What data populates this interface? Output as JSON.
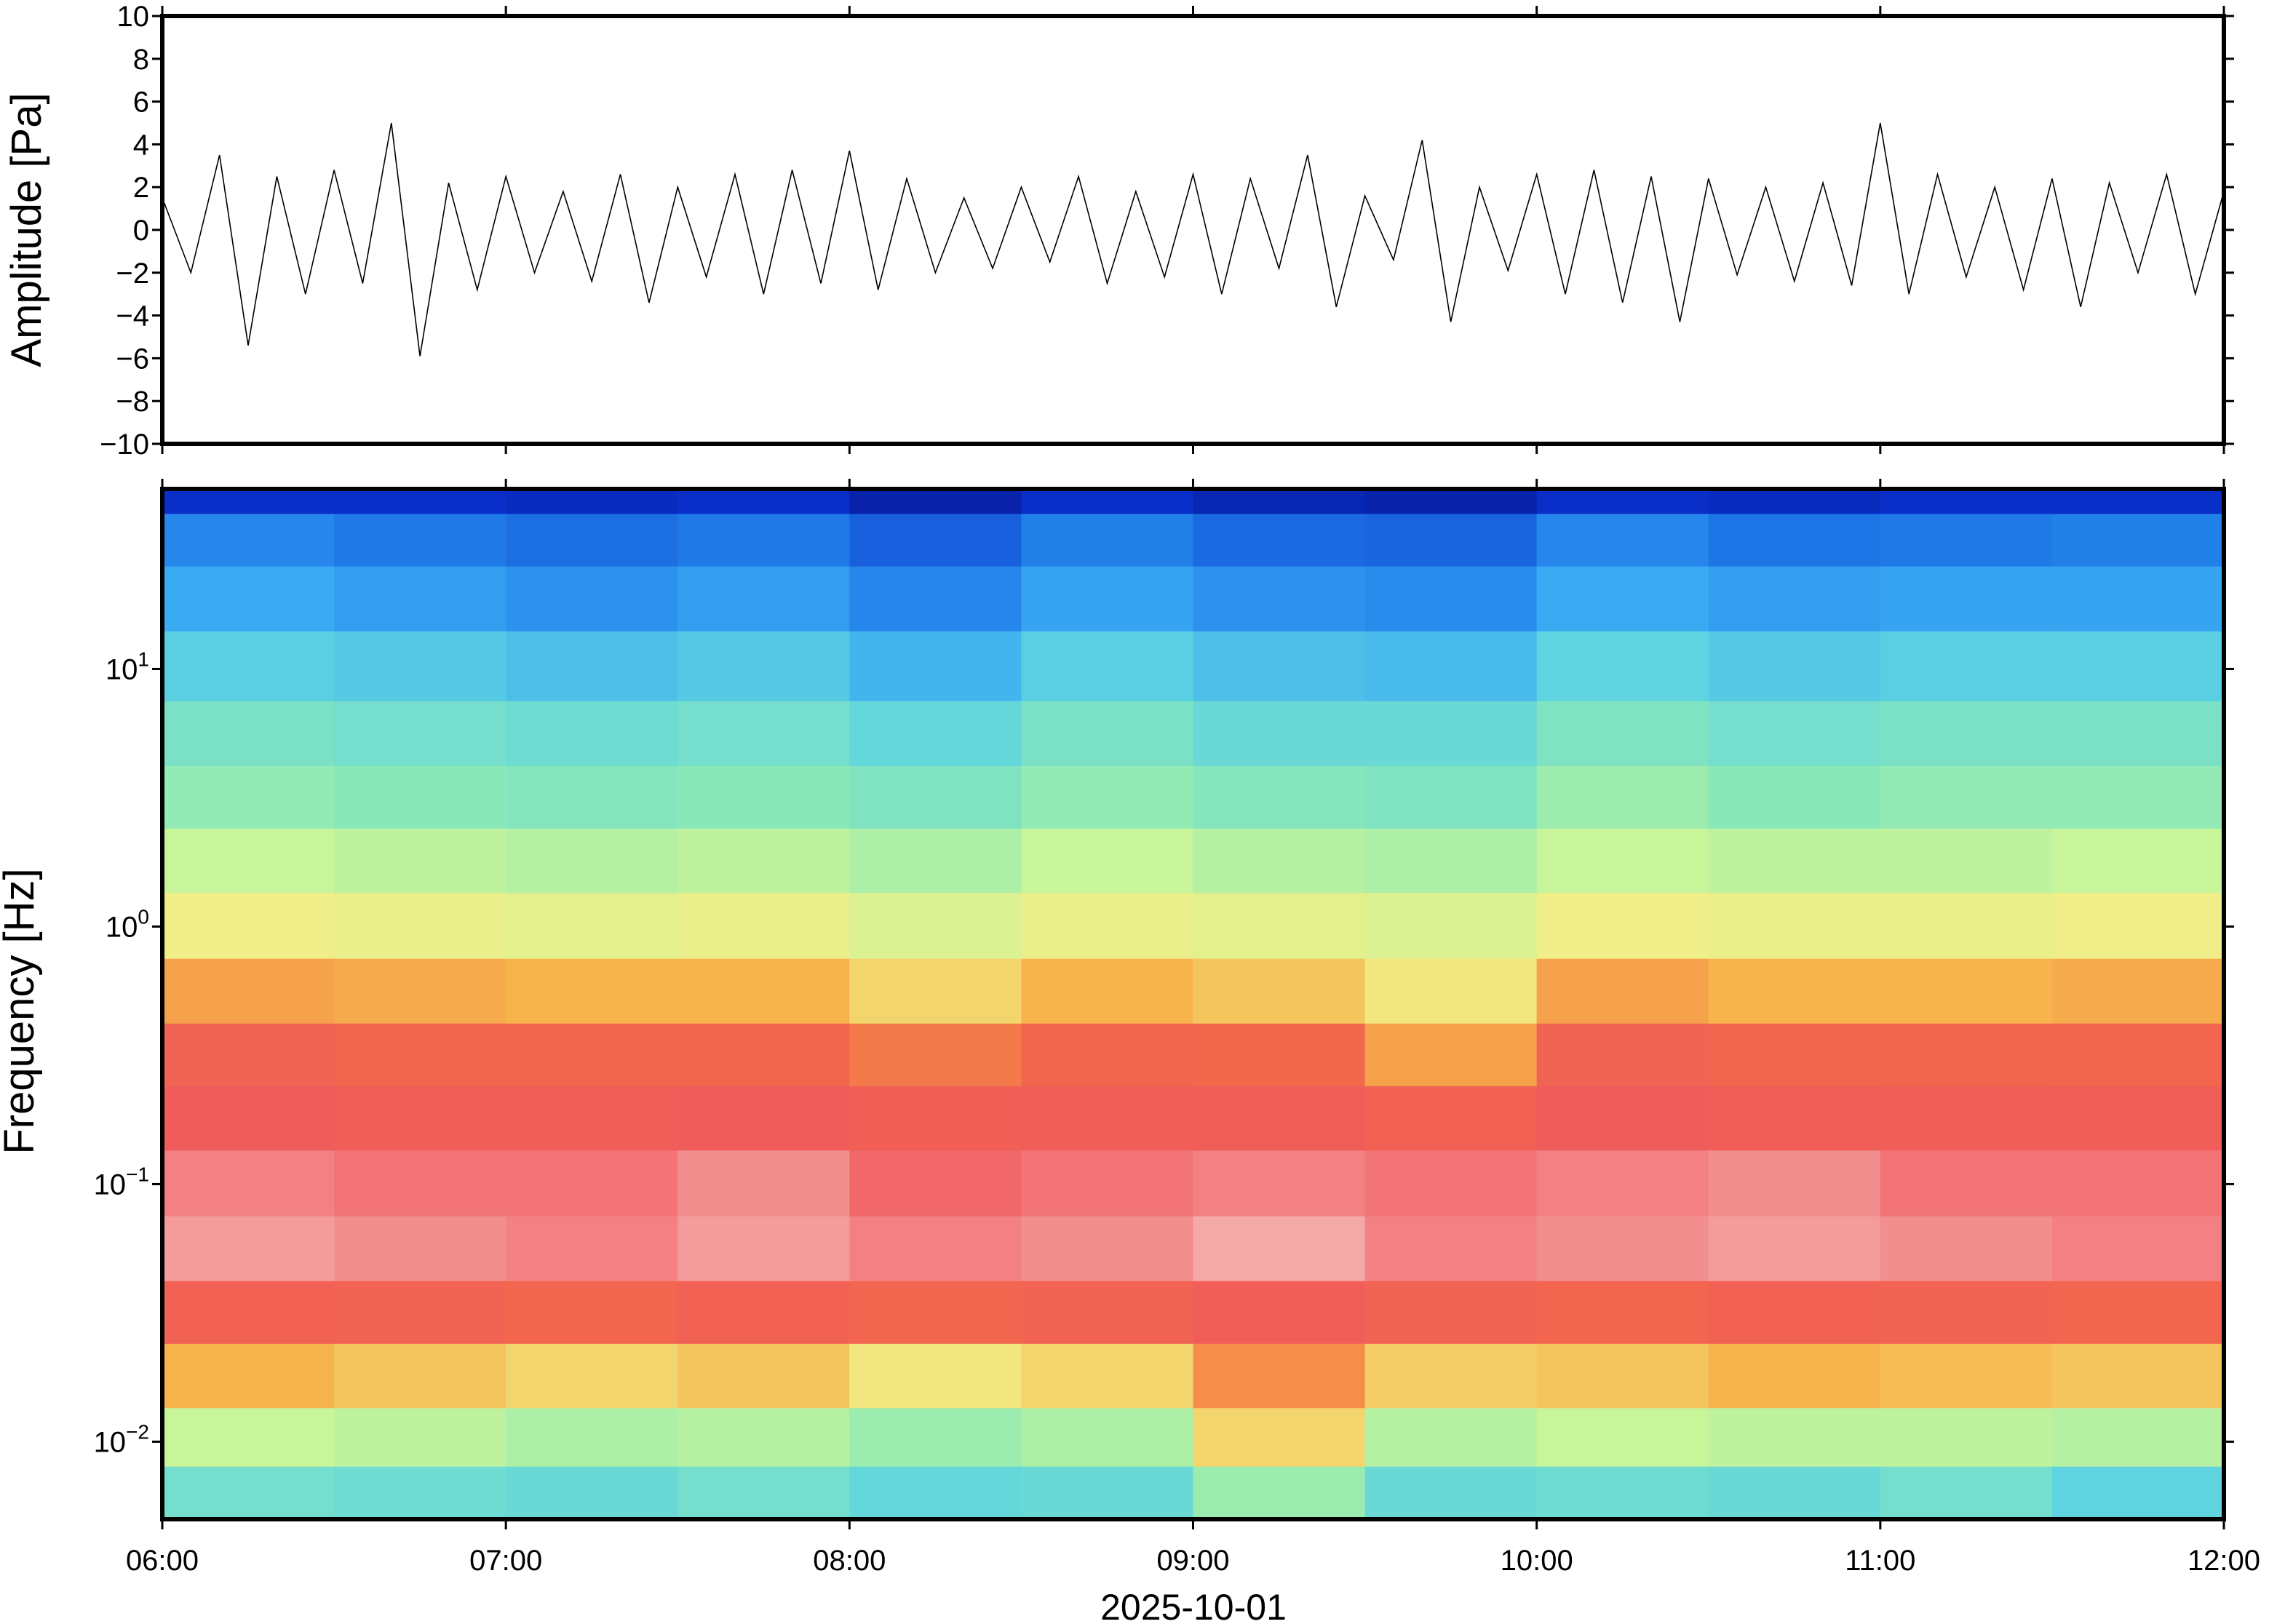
{
  "chart_data": [
    {
      "type": "line",
      "ylabel": "Amplitude [Pa]",
      "color": "#000000",
      "xlim": [
        6,
        12
      ],
      "ylim": [
        -10,
        10
      ],
      "yticks": [
        {
          "value": -10,
          "label": "−10"
        },
        {
          "value": -8,
          "label": "−8"
        },
        {
          "value": -6,
          "label": "−6"
        },
        {
          "value": -4,
          "label": "−4"
        },
        {
          "value": -2,
          "label": "−2"
        },
        0,
        2,
        4,
        6,
        8,
        10
      ],
      "x": [
        6.0,
        6.0833,
        6.1667,
        6.25,
        6.3333,
        6.4167,
        6.5,
        6.5833,
        6.6667,
        6.75,
        6.8333,
        6.9167,
        7.0,
        7.0833,
        7.1667,
        7.25,
        7.3333,
        7.4167,
        7.5,
        7.5833,
        7.6667,
        7.75,
        7.8333,
        7.9167,
        8.0,
        8.0833,
        8.1667,
        8.25,
        8.3333,
        8.4167,
        8.5,
        8.5833,
        8.6667,
        8.75,
        8.8333,
        8.9167,
        9.0,
        9.0833,
        9.1667,
        9.25,
        9.3333,
        9.4167,
        9.5,
        9.5833,
        9.6667,
        9.75,
        9.8333,
        9.9167,
        10.0,
        10.0833,
        10.1667,
        10.25,
        10.3333,
        10.4167,
        10.5,
        10.5833,
        10.6667,
        10.75,
        10.8333,
        10.9167,
        11.0,
        11.0833,
        11.1667,
        11.25,
        11.3333,
        11.4167,
        11.5,
        11.5833,
        11.6667,
        11.75,
        11.8333,
        11.9167,
        12.0
      ],
      "values": [
        1.5,
        -2.0,
        3.5,
        -5.4,
        2.5,
        -3.0,
        2.8,
        -2.5,
        5.0,
        -5.9,
        2.2,
        -2.8,
        2.5,
        -2.0,
        1.8,
        -2.4,
        2.6,
        -3.4,
        2.0,
        -2.2,
        2.6,
        -3.0,
        2.8,
        -2.5,
        3.7,
        -2.8,
        2.4,
        -2.0,
        1.5,
        -1.8,
        2.0,
        -1.5,
        2.5,
        -2.5,
        1.8,
        -2.2,
        2.6,
        -3.0,
        2.4,
        -1.8,
        3.5,
        -3.6,
        1.6,
        -1.4,
        4.2,
        -4.3,
        2.0,
        -1.9,
        2.6,
        -3.0,
        2.8,
        -3.4,
        2.5,
        -4.3,
        2.4,
        -2.1,
        2.0,
        -2.4,
        2.2,
        -2.6,
        5.0,
        -3.0,
        2.6,
        -2.2,
        2.0,
        -2.8,
        2.4,
        -3.6,
        2.2,
        -2.0,
        2.6,
        -3.0,
        1.8
      ]
    },
    {
      "type": "heatmap",
      "ylabel": "Frequency [Hz]",
      "xlabel": "2025-10-01",
      "yscale": "log",
      "xlim": [
        6,
        12
      ],
      "ylim": [
        0.005,
        50
      ],
      "xticks": [
        {
          "value": 6,
          "label": "06:00"
        },
        {
          "value": 7,
          "label": "07:00"
        },
        {
          "value": 8,
          "label": "08:00"
        },
        {
          "value": 9,
          "label": "09:00"
        },
        {
          "value": 10,
          "label": "10:00"
        },
        {
          "value": 11,
          "label": "11:00"
        },
        {
          "value": 12,
          "label": "12:00"
        }
      ],
      "yticks": [
        {
          "value": 0.01,
          "label": "10",
          "exponent": "−2"
        },
        {
          "value": 0.1,
          "label": "10",
          "exponent": "−1"
        },
        {
          "value": 1,
          "label": "10",
          "exponent": "0"
        },
        {
          "value": 10,
          "label": "10",
          "exponent": "1"
        }
      ],
      "x_edges": [
        6,
        6.5,
        7,
        7.5,
        8,
        8.5,
        9,
        9.5,
        10,
        10.5,
        11,
        11.5,
        12
      ],
      "y_edges": [
        50,
        40,
        25,
        14,
        7.5,
        4.2,
        2.4,
        1.35,
        0.75,
        0.42,
        0.24,
        0.135,
        0.075,
        0.042,
        0.024,
        0.0135,
        0.008,
        0.005
      ],
      "colorscale": [
        [
          0,
          "#00004a"
        ],
        [
          12,
          "#0a2fc8"
        ],
        [
          26,
          "#1f7ae8"
        ],
        [
          34,
          "#3aaaf2"
        ],
        [
          42,
          "#5fd4e0"
        ],
        [
          50,
          "#8ae8b8"
        ],
        [
          57,
          "#c8f49a"
        ],
        [
          63,
          "#f0ee88"
        ],
        [
          70,
          "#f7b44c"
        ],
        [
          78,
          "#f2684a"
        ],
        [
          86,
          "#f05a5e"
        ],
        [
          92,
          "#f5a8a8"
        ]
      ],
      "z": [
        [
          12,
          12,
          11,
          12,
          9,
          12,
          10,
          9,
          12,
          11,
          12,
          12
        ],
        [
          28,
          26,
          24,
          26,
          21,
          27,
          23,
          22,
          28,
          25,
          26,
          27
        ],
        [
          34,
          32,
          30,
          32,
          28,
          33,
          30,
          29,
          34,
          32,
          33,
          33
        ],
        [
          41,
          40,
          38,
          40,
          36,
          41,
          38,
          37,
          42,
          40,
          41,
          41
        ],
        [
          47,
          46,
          45,
          46,
          43,
          47,
          44,
          44,
          48,
          46,
          47,
          47
        ],
        [
          51,
          50,
          49,
          50,
          48,
          51,
          49,
          48,
          52,
          50,
          51,
          51
        ],
        [
          57,
          56,
          55,
          56,
          54,
          57,
          55,
          54,
          57,
          56,
          56,
          57
        ],
        [
          63,
          62,
          61,
          62,
          60,
          62,
          61,
          60,
          63,
          62,
          62,
          63
        ],
        [
          72,
          71,
          70,
          70,
          66,
          70,
          68,
          64,
          72,
          70,
          70,
          71
        ],
        [
          81,
          80,
          80,
          79,
          76,
          79,
          78,
          72,
          81,
          80,
          79,
          80
        ],
        [
          85,
          84,
          84,
          85,
          83,
          84,
          84,
          82,
          85,
          84,
          84,
          84
        ],
        [
          89,
          88,
          88,
          90,
          87,
          88,
          89,
          88,
          89,
          90,
          88,
          88
        ],
        [
          91,
          90,
          89,
          91,
          89,
          90,
          92,
          89,
          90,
          91,
          90,
          89
        ],
        [
          82,
          81,
          80,
          82,
          80,
          81,
          84,
          81,
          80,
          82,
          81,
          80
        ],
        [
          70,
          68,
          66,
          68,
          64,
          66,
          74,
          67,
          68,
          70,
          69,
          68
        ],
        [
          57,
          56,
          54,
          55,
          52,
          54,
          66,
          55,
          57,
          56,
          56,
          55
        ],
        [
          46,
          45,
          44,
          46,
          43,
          44,
          52,
          44,
          45,
          44,
          46,
          42
        ]
      ]
    }
  ]
}
